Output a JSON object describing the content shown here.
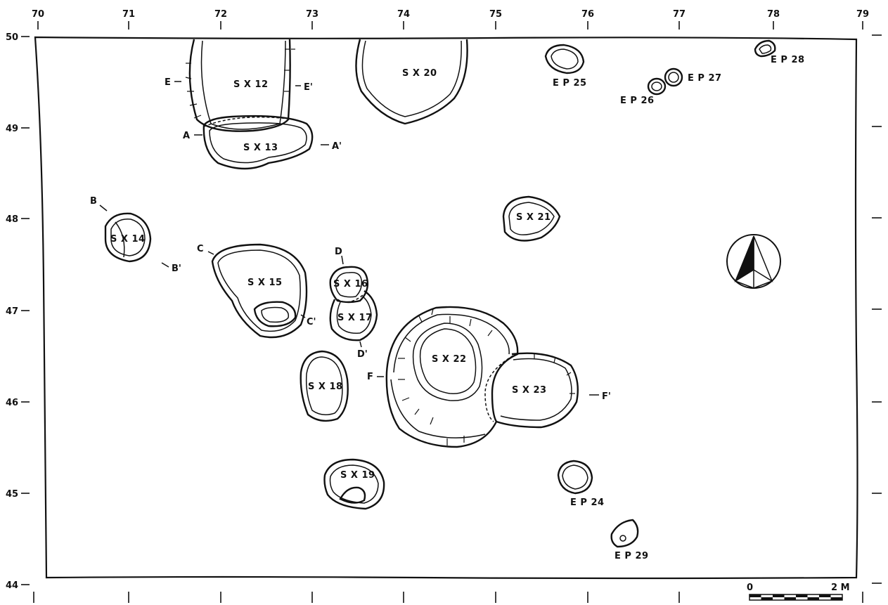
{
  "x_axis_labels": [
    "70",
    "71",
    "72",
    "73",
    "74",
    "75",
    "76",
    "77",
    "78",
    "79"
  ],
  "y_axis_labels": [
    "50",
    "49",
    "48",
    "47",
    "46",
    "45",
    "44"
  ],
  "features": {
    "sx12": "S X 12",
    "sx13": "S X 13",
    "sx14": "S X 14",
    "sx15": "S X 15",
    "sx16": "S X 16",
    "sx17": "S X 17",
    "sx18": "S X 18",
    "sx19": "S X 19",
    "sx20": "S X 20",
    "sx21": "S X 21",
    "sx22": "S X 22",
    "sx23": "S X 23",
    "ep24": "E P 24",
    "ep25": "E P 25",
    "ep26": "E P 26",
    "ep27": "E P 27",
    "ep28": "E P 28",
    "ep29": "E P 29"
  },
  "sections": {
    "a": "A",
    "a_prime": "A'",
    "b": "B",
    "b_prime": "B'",
    "c": "C",
    "c_prime": "C'",
    "d": "D",
    "d_prime": "D'",
    "e": "E",
    "e_prime": "E'",
    "f": "F",
    "f_prime": "F'"
  },
  "scale_bar": {
    "start": "0",
    "end": "2 M"
  },
  "north_arrow": "north-arrow-icon"
}
